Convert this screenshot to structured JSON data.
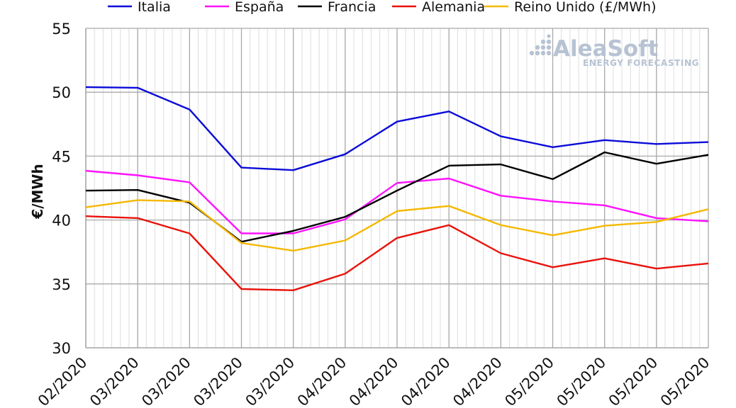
{
  "chart_data": {
    "type": "line",
    "ylabel": "€/MWh",
    "xlabel": "",
    "title": "",
    "ylim": [
      30,
      55
    ],
    "y_ticks": [
      30,
      35,
      40,
      45,
      50,
      55
    ],
    "grid": true,
    "legend_position": "top",
    "categories": [
      "02/2020",
      "03/2020",
      "03/2020",
      "03/2020",
      "03/2020",
      "04/2020",
      "04/2020",
      "04/2020",
      "04/2020",
      "05/2020",
      "05/2020",
      "05/2020",
      "05/2020"
    ],
    "series": [
      {
        "name": "Italia",
        "color": "#0b0bd9",
        "values": [
          50.4,
          50.35,
          48.65,
          44.1,
          43.9,
          45.15,
          47.7,
          48.5,
          46.55,
          45.7,
          46.25,
          45.95,
          46.1
        ]
      },
      {
        "name": "España",
        "color": "#ff12ff",
        "values": [
          43.85,
          43.5,
          42.95,
          38.95,
          38.95,
          40.05,
          42.9,
          43.25,
          41.9,
          41.45,
          41.15,
          40.15,
          39.9
        ]
      },
      {
        "name": "Francia",
        "color": "#000000",
        "values": [
          42.3,
          42.35,
          41.35,
          38.3,
          39.15,
          40.25,
          42.3,
          44.25,
          44.35,
          43.2,
          45.3,
          44.4,
          45.1
        ]
      },
      {
        "name": "Alemania",
        "color": "#e8120c",
        "values": [
          40.3,
          40.15,
          38.95,
          34.6,
          34.5,
          35.8,
          38.6,
          39.6,
          37.4,
          36.3,
          37.0,
          36.2,
          36.6
        ]
      },
      {
        "name": "Reino Unido (£/MWh)",
        "color": "#f5b800",
        "values": [
          41.0,
          41.55,
          41.45,
          38.2,
          37.6,
          38.4,
          40.7,
          41.1,
          39.6,
          38.8,
          39.55,
          39.85,
          40.85
        ]
      }
    ]
  },
  "watermark": {
    "brand": "AleaSoft",
    "tagline": "ENERGY FORECASTING"
  }
}
